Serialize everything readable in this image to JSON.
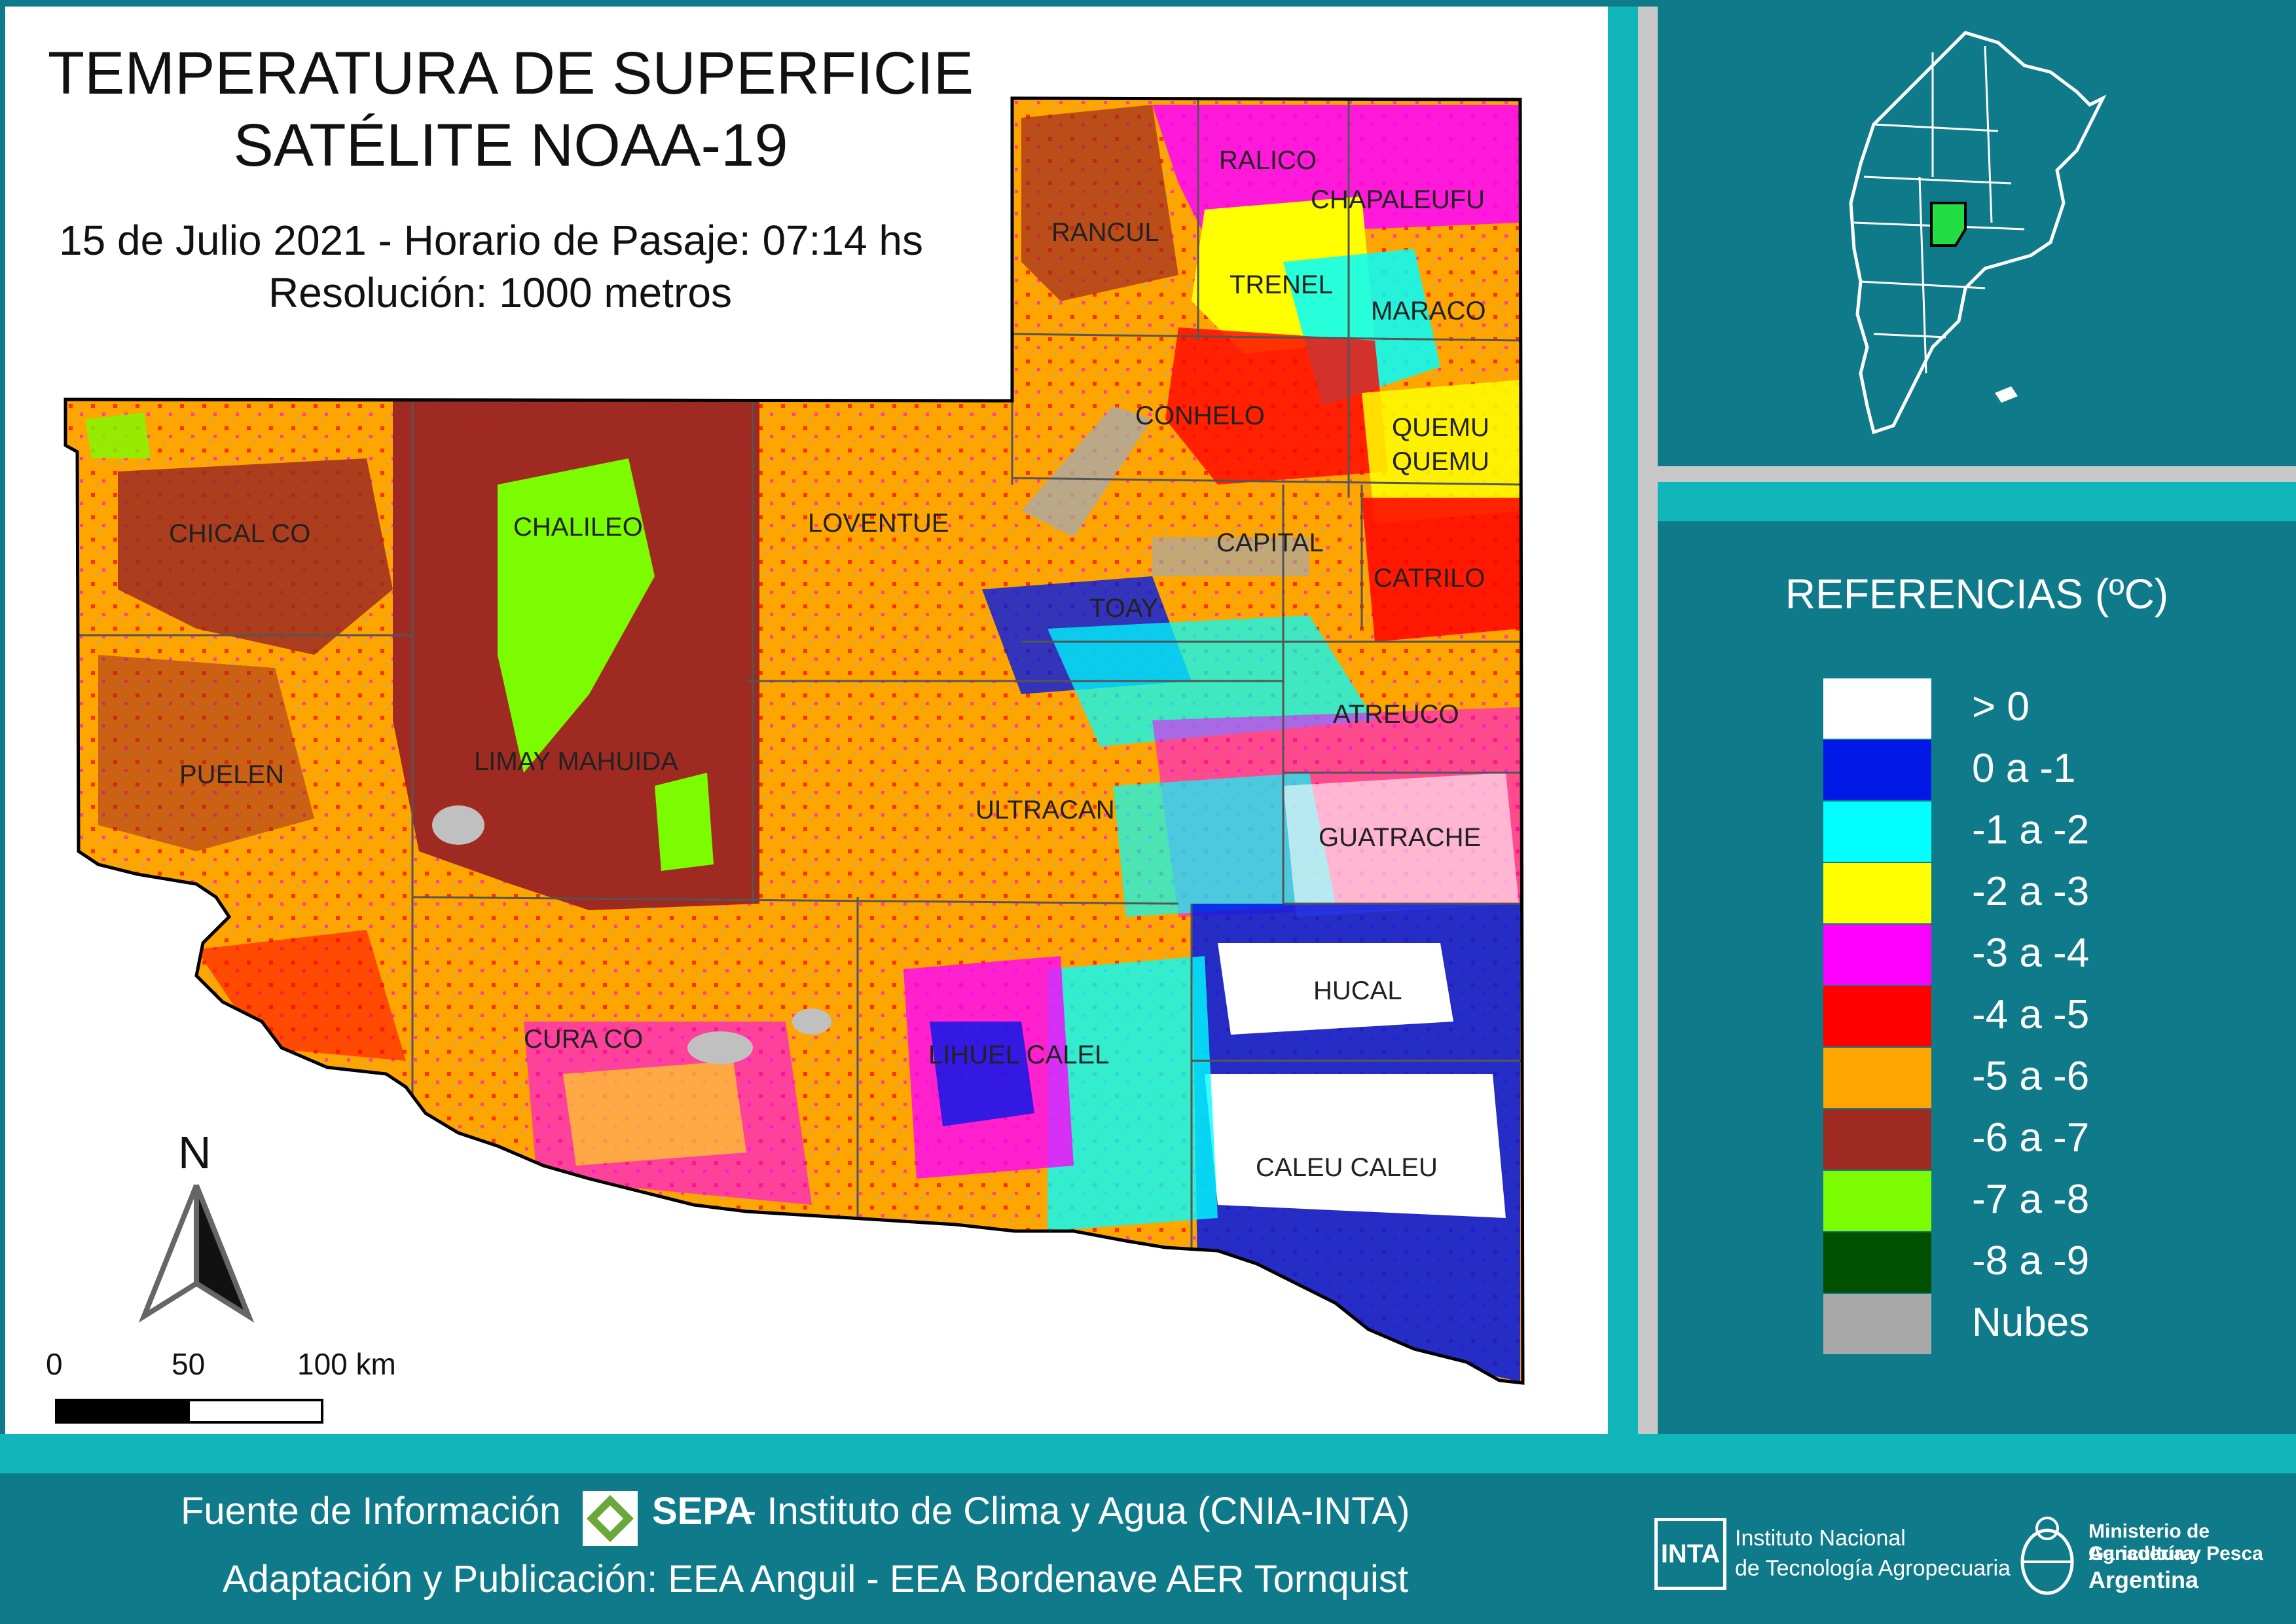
{
  "title": {
    "line1": "TEMPERATURA DE SUPERFICIE",
    "line2": "SATÉLITE NOAA-19",
    "subtitle1": "15 de Julio 2021 - Horario de Pasaje: 07:14 hs",
    "subtitle2": "Resolución: 1000 metros"
  },
  "departments": [
    "RANCUL",
    "RALICO",
    "CHAPALEUFU",
    "TRENEL",
    "MARACO",
    "CONHELO",
    "QUEMU",
    "QUEMU",
    "CHICAL CO",
    "CHALILEO",
    "LOVENTUE",
    "CAPITAL",
    "CATRILO",
    "TOAY",
    "ATREUCO",
    "PUELEN",
    "LIMAY MAHUIDA",
    "ULTRACAN",
    "GUATRACHE",
    "HUCAL",
    "CURA CO",
    "LIHUEL CALEL",
    "CALEU CALEU"
  ],
  "scale": {
    "north": "N",
    "tick0": "0",
    "tick1": "50",
    "tick2": "100 km"
  },
  "legend": {
    "title": "REFERENCIAS (ºC)",
    "items": [
      {
        "label": "> 0",
        "color": "#ffffff"
      },
      {
        "label": "0 a -1",
        "color": "#0018e6"
      },
      {
        "label": "-1 a -2",
        "color": "#00ffff"
      },
      {
        "label": "-2 a -3",
        "color": "#ffff00"
      },
      {
        "label": "-3 a -4",
        "color": "#ff00ff"
      },
      {
        "label": "-4 a -5",
        "color": "#ff0000"
      },
      {
        "label": "-5 a -6",
        "color": "#ffa500"
      },
      {
        "label": "-6 a -7",
        "color": "#9e2a22"
      },
      {
        "label": "-7 a -8",
        "color": "#7cfc00"
      },
      {
        "label": "-8 a -9",
        "color": "#005000"
      },
      {
        "label": "Nubes",
        "color": "#a9a9a9"
      }
    ]
  },
  "footer": {
    "source_label": "Fuente de Información",
    "sepa": "SEPA",
    "source_rest": " - Instituto de Clima y Agua (CNIA-INTA)",
    "adaptation": "Adaptación y Publicación: EEA Anguil - EEA Bordenave AER Tornquist",
    "inta_logo": "INTA",
    "inta_line1": "Instituto Nacional",
    "inta_line2": "de Tecnología Agropecuaria",
    "min_line1": "Ministerio de Agricultura,",
    "min_line2": "Ganadería y Pesca",
    "min_line3": "Argentina"
  },
  "colors": {
    "teal_dark": "#0f7a8a",
    "teal_light": "#10b6b9",
    "highlight_province": "#22dd44"
  }
}
